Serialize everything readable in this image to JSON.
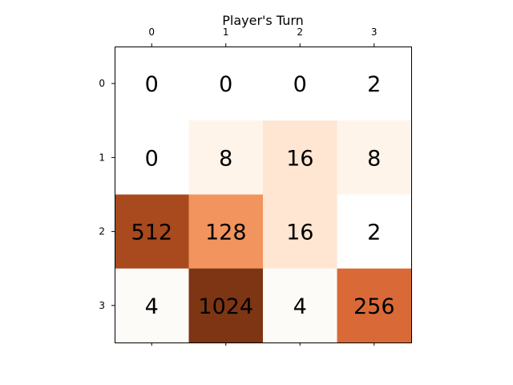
{
  "game": {
    "title": "Player's Turn",
    "columns": [
      "0",
      "1",
      "2",
      "3"
    ],
    "rows": [
      "0",
      "1",
      "2",
      "3"
    ],
    "board": [
      [
        0,
        0,
        0,
        2
      ],
      [
        0,
        8,
        16,
        8
      ],
      [
        512,
        128,
        16,
        2
      ],
      [
        4,
        1024,
        4,
        256
      ]
    ],
    "tile_colors": {
      "0": "#ffffff",
      "2": "#ffffff",
      "4": "#fdfbf8",
      "8": "#fff4e9",
      "16": "#fee6d2",
      "128": "#f1945e",
      "256": "#d96a38",
      "512": "#a8491e",
      "1024": "#7e3514"
    },
    "text_color": "#000000"
  }
}
